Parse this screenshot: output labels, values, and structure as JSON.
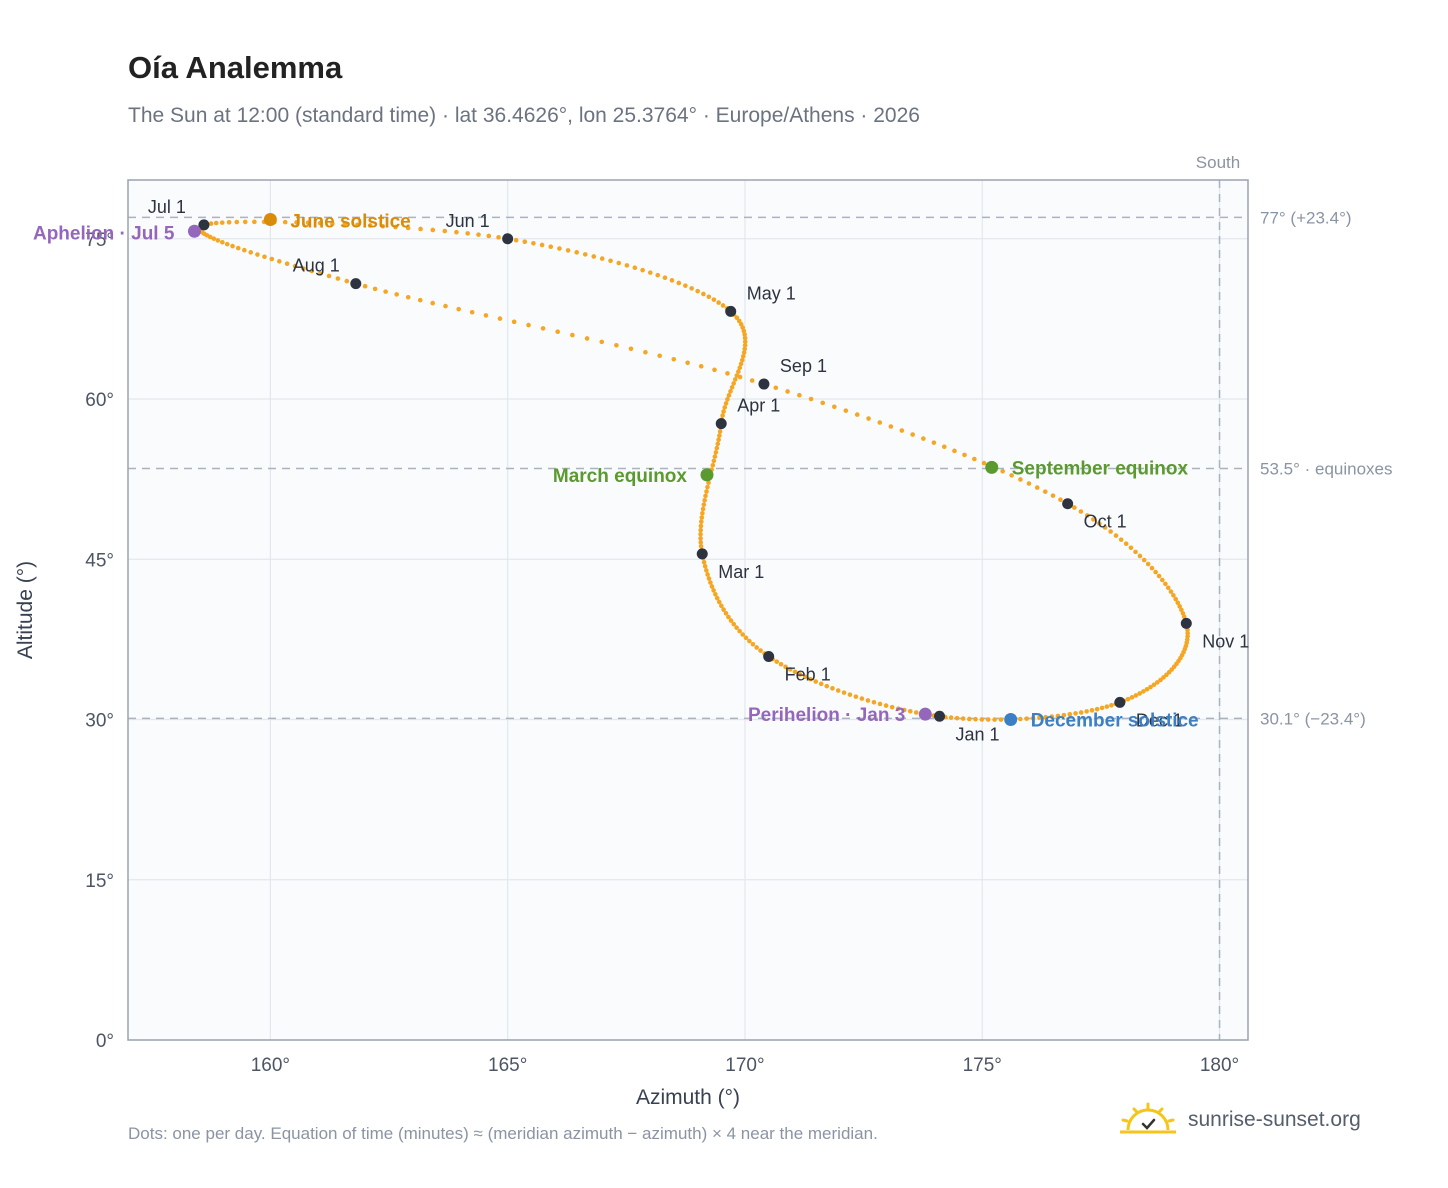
{
  "title": "Oía Analemma",
  "subtitle": "The Sun at 12:00 (standard time) · lat 36.4626°, lon 25.3764° · Europe/Athens · 2026",
  "footnote": "Dots: one per day. Equation of time (minutes) ≈ (meridian azimuth − azimuth) × 4 near the meridian.",
  "brand": "sunrise-sunset.org",
  "chart_data": {
    "type": "scatter",
    "title": "Oía Analemma",
    "xlabel": "Azimuth (°)",
    "ylabel": "Altitude (°)",
    "xlim": [
      157,
      180.6
    ],
    "ylim": [
      0,
      80.5
    ],
    "xticks": [
      160,
      165,
      170,
      175,
      180
    ],
    "yticks": [
      0,
      15,
      30,
      45,
      60,
      75
    ],
    "grid": true,
    "meridian_label": "South",
    "meridian_azimuth": 180,
    "reference_lines": [
      {
        "altitude": 77.0,
        "label": "77° (+23.4°)"
      },
      {
        "altitude": 53.5,
        "label": "53.5° · equinoxes"
      },
      {
        "altitude": 30.1,
        "label": "30.1° (−23.4°)"
      }
    ],
    "path_color": "#f5a623",
    "month_points": [
      {
        "label": "Jan 1",
        "az": 174.1,
        "alt": 30.3
      },
      {
        "label": "Feb 1",
        "az": 170.5,
        "alt": 35.9
      },
      {
        "label": "Mar 1",
        "az": 169.1,
        "alt": 45.5
      },
      {
        "label": "Apr 1",
        "az": 169.5,
        "alt": 57.7
      },
      {
        "label": "May 1",
        "az": 169.7,
        "alt": 68.2
      },
      {
        "label": "Jun 1",
        "az": 165.0,
        "alt": 75.0
      },
      {
        "label": "Jul 1",
        "az": 158.6,
        "alt": 76.3
      },
      {
        "label": "Aug 1",
        "az": 161.8,
        "alt": 70.8
      },
      {
        "label": "Sep 1",
        "az": 170.4,
        "alt": 61.4
      },
      {
        "label": "Oct 1",
        "az": 176.8,
        "alt": 50.2
      },
      {
        "label": "Nov 1",
        "az": 179.3,
        "alt": 39.0
      },
      {
        "label": "Dec 1",
        "az": 177.9,
        "alt": 31.6
      }
    ],
    "events": [
      {
        "label": "December solstice",
        "az": 175.6,
        "alt": 30.0,
        "color": "#3b7fc4"
      },
      {
        "label": "Perihelion · Jan 3",
        "az": 173.8,
        "alt": 30.5,
        "color": "#9467bd"
      },
      {
        "label": "March equinox",
        "az": 169.2,
        "alt": 52.9,
        "color": "#5a9a2e"
      },
      {
        "label": "June solstice",
        "az": 160.0,
        "alt": 76.8,
        "color": "#d98c0a"
      },
      {
        "label": "Aphelion · Jul 5",
        "az": 158.4,
        "alt": 75.7,
        "color": "#9467bd"
      },
      {
        "label": "September equinox",
        "az": 175.2,
        "alt": 53.6,
        "color": "#5a9a2e"
      }
    ]
  }
}
